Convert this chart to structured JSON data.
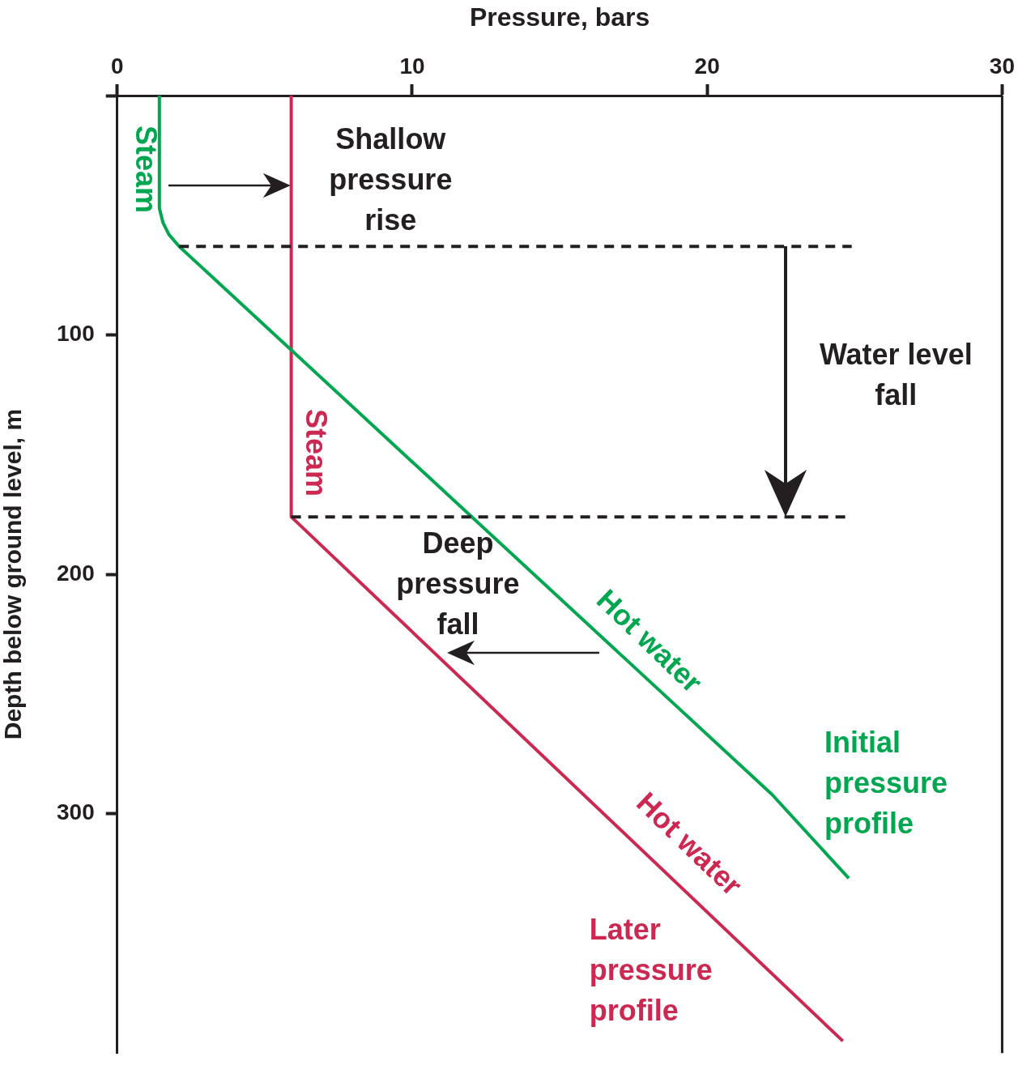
{
  "chart_data": {
    "type": "line",
    "xlabel": "Pressure, bars",
    "ylabel": "Depth below ground level, m",
    "xlim": [
      0,
      30
    ],
    "xticks": [
      0,
      10,
      20,
      30
    ],
    "ylim": [
      400,
      0
    ],
    "yticks": [
      {
        "value": 0,
        "label": null
      },
      100,
      200,
      300
    ],
    "grid": false,
    "legend": false,
    "marker": "none",
    "line_style": "solid",
    "series": [
      {
        "name": "Initial pressure profile",
        "color": "#00a650",
        "x": [
          1.43,
          1.43,
          1.55,
          1.75,
          2.1,
          22.2,
          24.8
        ],
        "values": [
          0,
          47,
          53,
          58,
          63,
          292,
          327
        ]
      },
      {
        "name": "Later pressure profile",
        "color": "#cc2952",
        "x": [
          5.9,
          5.9,
          24.6
        ],
        "values": [
          0,
          176,
          395
        ]
      }
    ],
    "ref_lines": [
      {
        "axis": "y",
        "value": 63,
        "color": "#231f20",
        "line_style": "dashed"
      },
      {
        "axis": "y",
        "value": 176,
        "color": "#231f20",
        "line_style": "dashed"
      }
    ],
    "annotations": [
      "Steam",
      "Shallow pressure rise",
      "Water level fall",
      "Steam",
      "Deep pressure fall",
      "Hot water",
      "Hot water"
    ]
  }
}
